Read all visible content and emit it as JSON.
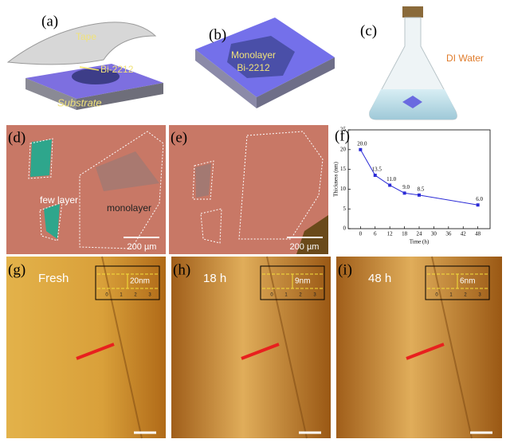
{
  "panels": {
    "a": {
      "label": "(a)",
      "tape": "Tape",
      "material": "Bi-2212",
      "substrate": "Substrate"
    },
    "b": {
      "label": "(b)",
      "line1": "Monolayer",
      "line2": "Bi-2212"
    },
    "c": {
      "label": "(c)",
      "liquid": "DI Water"
    },
    "d": {
      "label": "(d)",
      "few_layer": "few layer",
      "monolayer": "monolayer",
      "scale": "200 µm"
    },
    "e": {
      "label": "(e)",
      "scale": "200 µm"
    },
    "f": {
      "label": "(f)"
    },
    "g": {
      "label": "(g)",
      "time": "Fresh",
      "height": "20nm",
      "inset_axis": [
        "0",
        "1",
        "2",
        "3"
      ]
    },
    "h": {
      "label": "(h)",
      "time": "18 h",
      "height": "9nm",
      "inset_axis": [
        "0",
        "1",
        "2",
        "3"
      ]
    },
    "i": {
      "label": "(i)",
      "time": "48 h",
      "height": "6nm",
      "inset_axis": [
        "0",
        "1",
        "2",
        "3"
      ]
    }
  },
  "chart_data": {
    "type": "line",
    "x_label": "Time (h)",
    "y_label": "Thickness (nm)",
    "x": [
      0,
      6,
      12,
      18,
      24,
      48
    ],
    "values": [
      20.0,
      13.5,
      11.0,
      9.0,
      8.5,
      6.0
    ],
    "value_labels": [
      "20.0",
      "13.5",
      "11.0",
      "9.0",
      "8.5",
      "6.0"
    ],
    "color": "#2b2bd6",
    "xlim": [
      -5,
      53
    ],
    "xticks": [
      0,
      6,
      12,
      18,
      24,
      30,
      36,
      42,
      48
    ],
    "ylim": [
      0,
      25
    ],
    "yticks": [
      0,
      5,
      10,
      15,
      20,
      25
    ]
  }
}
